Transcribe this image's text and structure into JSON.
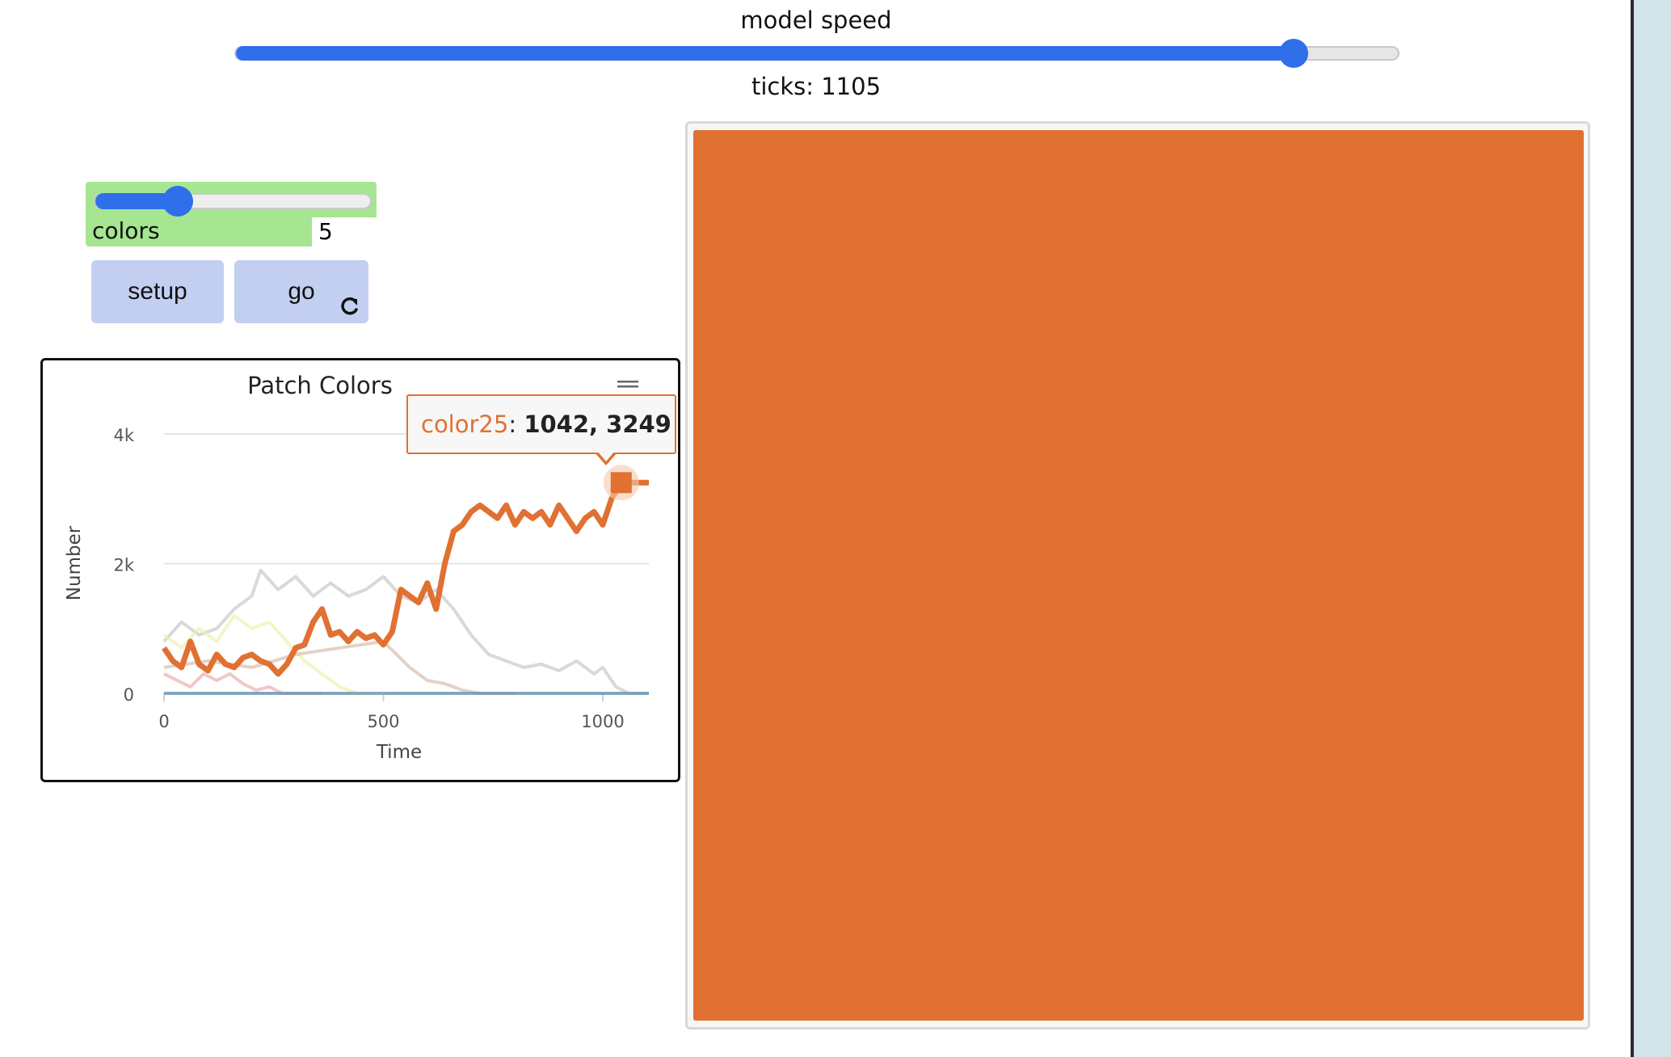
{
  "speed": {
    "label": "model speed",
    "value": 0.91
  },
  "ticks": {
    "label": "ticks: 1105"
  },
  "colors_slider": {
    "label": "colors",
    "value": "5",
    "fill_fraction": 0.3
  },
  "buttons": {
    "setup": "setup",
    "go": "go"
  },
  "icons": {
    "forever": "forever-icon",
    "menu": "hamburger-menu-icon"
  },
  "plot": {
    "title": "Patch Colors",
    "tooltip": {
      "series": "color25",
      "separator": ": ",
      "values": "1042, 3249"
    }
  },
  "world": {
    "color": "#e07132"
  },
  "chart_data": {
    "type": "line",
    "title": "Patch Colors",
    "xlabel": "Time",
    "ylabel": "Number",
    "xlim": [
      0,
      1105
    ],
    "ylim": [
      0,
      4000
    ],
    "xticks": [
      "0",
      "500",
      "1000"
    ],
    "yticks": [
      "0",
      "2k",
      "4k"
    ],
    "grid": true,
    "legend": "none",
    "series": [
      {
        "name": "color25",
        "color": "#e07132",
        "x": [
          0,
          20,
          40,
          60,
          80,
          100,
          120,
          140,
          160,
          180,
          200,
          220,
          240,
          260,
          280,
          300,
          320,
          340,
          360,
          380,
          400,
          420,
          440,
          460,
          480,
          500,
          520,
          540,
          560,
          580,
          600,
          620,
          640,
          660,
          680,
          700,
          720,
          740,
          760,
          780,
          800,
          820,
          840,
          860,
          880,
          900,
          920,
          940,
          960,
          980,
          1000,
          1020,
          1042,
          1080,
          1105
        ],
        "y": [
          700,
          500,
          400,
          800,
          450,
          350,
          600,
          450,
          400,
          550,
          600,
          500,
          450,
          300,
          450,
          700,
          750,
          1100,
          1300,
          900,
          950,
          800,
          950,
          850,
          900,
          750,
          950,
          1600,
          1500,
          1400,
          1700,
          1300,
          2000,
          2500,
          2600,
          2800,
          2900,
          2800,
          2700,
          2900,
          2600,
          2800,
          2700,
          2800,
          2600,
          2900,
          2700,
          2500,
          2700,
          2800,
          2600,
          3000,
          3249,
          3249,
          3249
        ]
      },
      {
        "name": "",
        "color": "#c9c9c9",
        "x": [
          0,
          40,
          80,
          120,
          160,
          200,
          220,
          260,
          300,
          340,
          380,
          420,
          460,
          500,
          540,
          580,
          620,
          660,
          700,
          740,
          780,
          820,
          860,
          900,
          940,
          980,
          1000,
          1030,
          1060,
          1105
        ],
        "y": [
          800,
          1100,
          900,
          1000,
          1300,
          1500,
          1900,
          1600,
          1800,
          1500,
          1700,
          1500,
          1600,
          1800,
          1500,
          1400,
          1600,
          1300,
          900,
          600,
          500,
          400,
          450,
          350,
          500,
          300,
          400,
          100,
          0,
          0
        ]
      },
      {
        "name": "",
        "color": "#f0f0b0",
        "x": [
          0,
          40,
          80,
          120,
          160,
          200,
          240,
          280,
          320,
          360,
          400,
          440,
          480,
          520
        ],
        "y": [
          900,
          700,
          1000,
          800,
          1200,
          1000,
          1100,
          800,
          500,
          300,
          100,
          0,
          0,
          0
        ]
      },
      {
        "name": "",
        "color": "#e8b0b0",
        "x": [
          0,
          30,
          60,
          90,
          120,
          150,
          180,
          210,
          240,
          270,
          300,
          330,
          360
        ],
        "y": [
          300,
          200,
          100,
          300,
          200,
          300,
          150,
          50,
          100,
          0,
          0,
          0,
          0
        ]
      },
      {
        "name": "",
        "color": "#d7bfae",
        "x": [
          0,
          100,
          200,
          300,
          400,
          500,
          560,
          600,
          640,
          680,
          720,
          760,
          800
        ],
        "y": [
          400,
          500,
          400,
          600,
          700,
          800,
          400,
          200,
          150,
          50,
          0,
          0,
          0
        ]
      },
      {
        "name": "",
        "color": "#5b8fb0",
        "x": [
          0,
          1105
        ],
        "y": [
          0,
          0
        ]
      }
    ]
  }
}
